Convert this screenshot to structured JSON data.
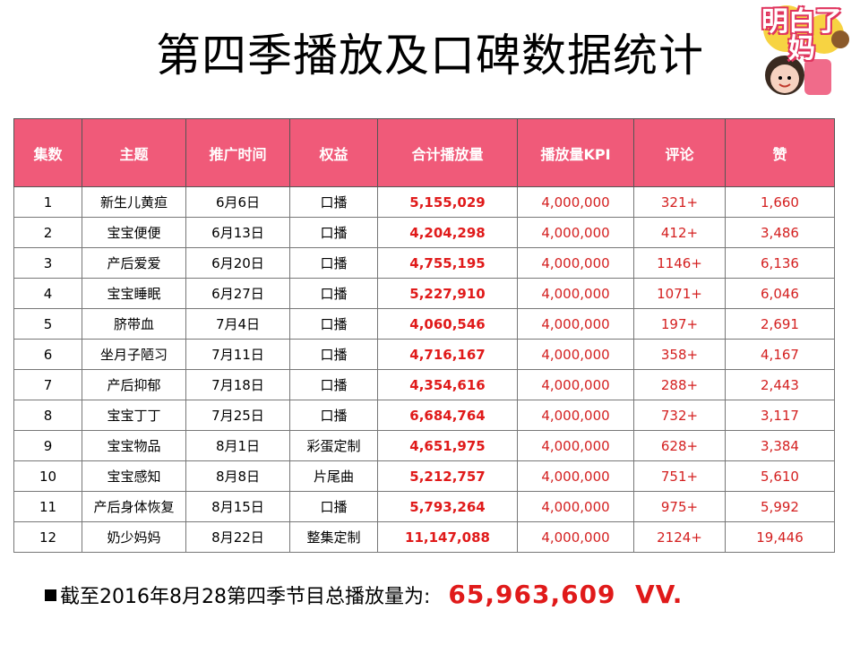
{
  "title": "第四季播放及口碑数据统计",
  "logo": {
    "text": "明白了妈",
    "icon": "mom-cartoon-logo"
  },
  "colors": {
    "header_bg": "#f05a79",
    "accent_red": "#e01a1a"
  },
  "table": {
    "headers": [
      "集数",
      "主题",
      "推广时间",
      "权益",
      "合计播放量",
      "播放量KPI",
      "评论",
      "赞"
    ],
    "rows": [
      [
        "1",
        "新生儿黄疸",
        "6月6日",
        "口播",
        "5,155,029",
        "4,000,000",
        "321+",
        "1,660"
      ],
      [
        "2",
        "宝宝便便",
        "6月13日",
        "口播",
        "4,204,298",
        "4,000,000",
        "412+",
        "3,486"
      ],
      [
        "3",
        "产后爱爱",
        "6月20日",
        "口播",
        "4,755,195",
        "4,000,000",
        "1146+",
        "6,136"
      ],
      [
        "4",
        "宝宝睡眠",
        "6月27日",
        "口播",
        "5,227,910",
        "4,000,000",
        "1071+",
        "6,046"
      ],
      [
        "5",
        "脐带血",
        "7月4日",
        "口播",
        "4,060,546",
        "4,000,000",
        "197+",
        "2,691"
      ],
      [
        "6",
        "坐月子陋习",
        "7月11日",
        "口播",
        "4,716,167",
        "4,000,000",
        "358+",
        "4,167"
      ],
      [
        "7",
        "产后抑郁",
        "7月18日",
        "口播",
        "4,354,616",
        "4,000,000",
        "288+",
        "2,443"
      ],
      [
        "8",
        "宝宝丁丁",
        "7月25日",
        "口播",
        "6,684,764",
        "4,000,000",
        "732+",
        "3,117"
      ],
      [
        "9",
        "宝宝物品",
        "8月1日",
        "彩蛋定制",
        "4,651,975",
        "4,000,000",
        "628+",
        "3,384"
      ],
      [
        "10",
        "宝宝感知",
        "8月8日",
        "片尾曲",
        "5,212,757",
        "4,000,000",
        "751+",
        "5,610"
      ],
      [
        "11",
        "产后身体恢复",
        "8月15日",
        "口播",
        "5,793,264",
        "4,000,000",
        "975+",
        "5,992"
      ],
      [
        "12",
        "奶少妈妈",
        "8月22日",
        "整集定制",
        "11,147,088",
        "4,000,000",
        "2124+",
        "19,446"
      ]
    ]
  },
  "summary": {
    "label": "截至2016年8月28第四季节目总播放量为:",
    "total": "65,963,609",
    "unit": "VV."
  }
}
